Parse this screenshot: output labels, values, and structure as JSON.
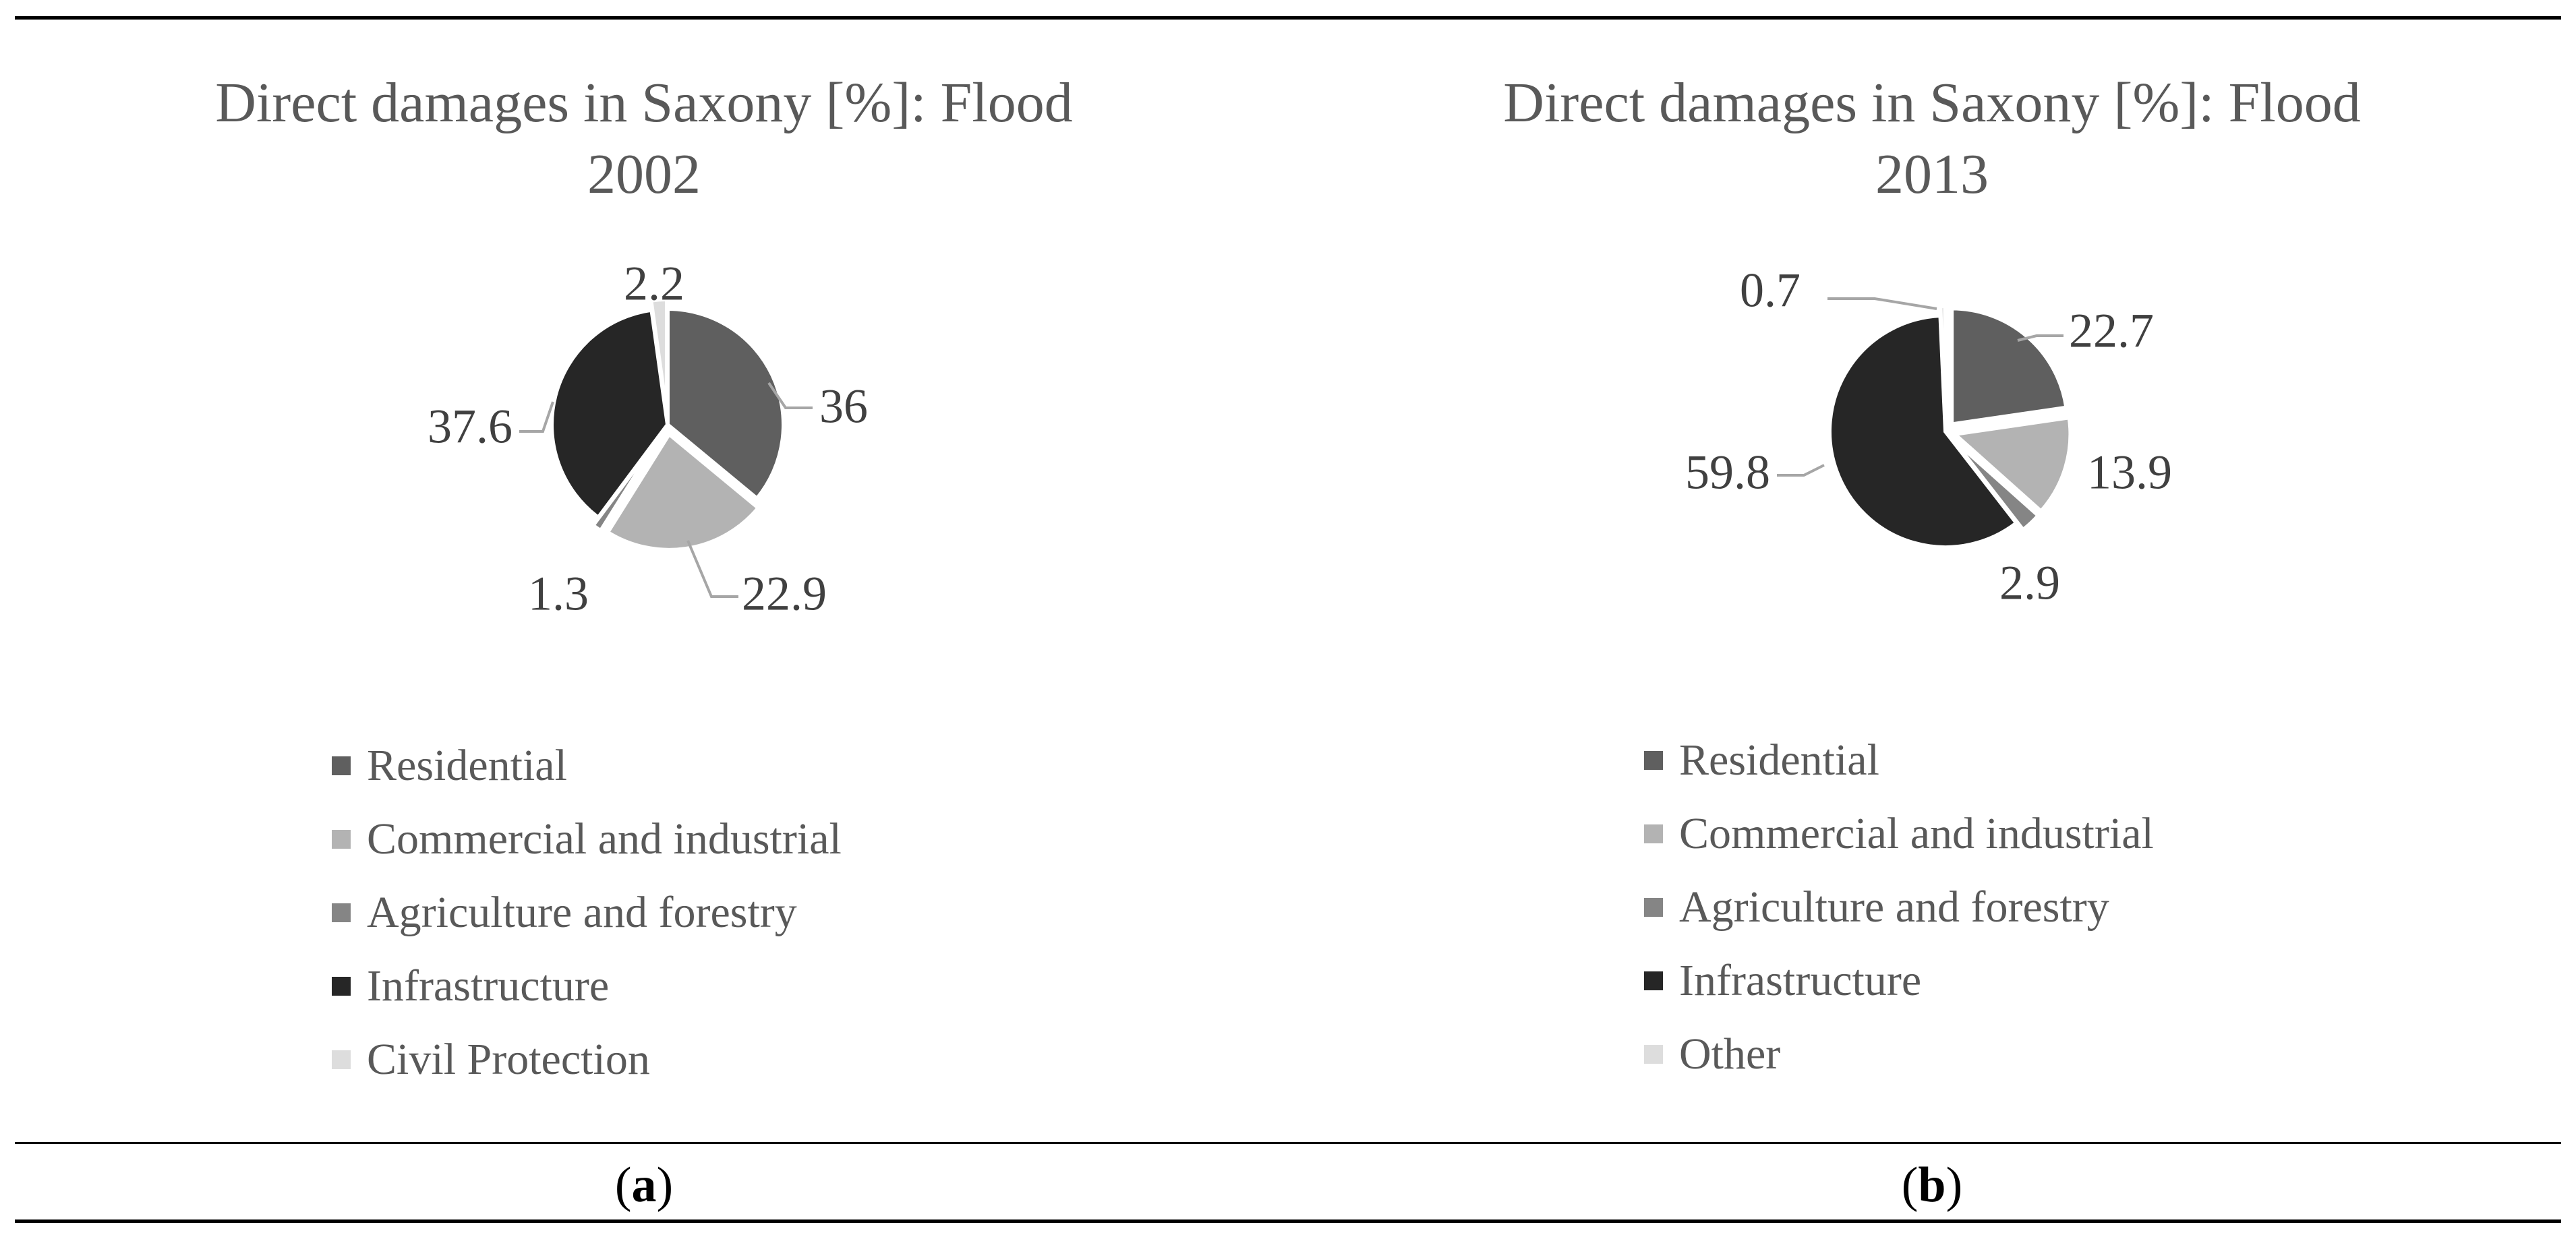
{
  "colors": {
    "residential": "#5f5f5f",
    "commercial": "#b3b3b3",
    "agriculture": "#858585",
    "infrastructure": "#262626",
    "civil_protection": "#dddddd",
    "other": "#dddddd",
    "leader_line": "#a6a6a6"
  },
  "chart_data": [
    {
      "type": "pie",
      "title": "Direct damages in Saxony [%]: Flood 2002",
      "title_lines": [
        "Direct damages in Saxony [%]: Flood",
        "2002"
      ],
      "caption_letter": "a",
      "slices": [
        {
          "label": "Residential",
          "value": 36,
          "display": "36",
          "color": "#5f5f5f"
        },
        {
          "label": "Commercial and industrial",
          "value": 22.9,
          "display": "22.9",
          "color": "#b3b3b3"
        },
        {
          "label": "Agriculture and forestry",
          "value": 1.3,
          "display": "1.3",
          "color": "#858585"
        },
        {
          "label": "Infrastructure",
          "value": 37.6,
          "display": "37.6",
          "color": "#262626"
        },
        {
          "label": "Civil Protection",
          "value": 2.2,
          "display": "2.2",
          "color": "#dddddd"
        }
      ],
      "legend": [
        "Residential",
        "Commercial and industrial",
        "Agriculture and forestry",
        "Infrastructure",
        "Civil Protection"
      ],
      "start_angle_deg": 0,
      "direction": "clockwise",
      "legend_position": "bottom"
    },
    {
      "type": "pie",
      "title": "Direct damages in Saxony [%]: Flood 2013",
      "title_lines": [
        "Direct damages in Saxony [%]: Flood",
        "2013"
      ],
      "caption_letter": "b",
      "slices": [
        {
          "label": "Residential",
          "value": 22.7,
          "display": "22.7",
          "color": "#5f5f5f"
        },
        {
          "label": "Commercial and industrial",
          "value": 13.9,
          "display": "13.9",
          "color": "#b3b3b3"
        },
        {
          "label": "Agriculture and forestry",
          "value": 2.9,
          "display": "2.9",
          "color": "#858585"
        },
        {
          "label": "Infrastructure",
          "value": 59.8,
          "display": "59.8",
          "color": "#262626"
        },
        {
          "label": "Other",
          "value": 0.7,
          "display": "0.7",
          "color": "#dddddd"
        }
      ],
      "legend": [
        "Residential",
        "Commercial and industrial",
        "Agriculture and forestry",
        "Infrastructure",
        "Other"
      ],
      "start_angle_deg": 0,
      "direction": "clockwise",
      "legend_position": "bottom"
    }
  ]
}
